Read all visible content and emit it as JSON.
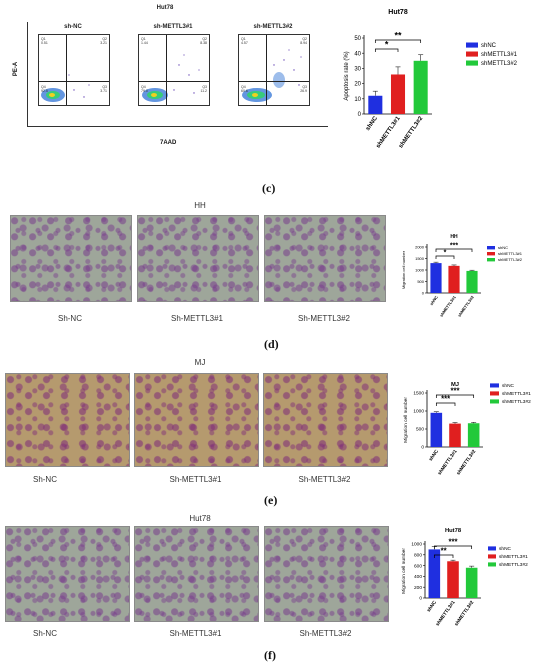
{
  "panel_letters": {
    "c": "(c)",
    "d": "(d)",
    "e": "(e)",
    "f": "(f)"
  },
  "flow": {
    "cell_line": "Hut78",
    "y_axis": "PE-A",
    "x_axis": "7AAD",
    "plots": [
      {
        "title": "sh-NC",
        "q1": "Q1",
        "q2": "Q2",
        "q3": "Q3",
        "q4": "Q4",
        "q1v": "0.51",
        "q2v": "3.21",
        "q3v": "3.71",
        "q4v": "92.5"
      },
      {
        "title": "sh-METTL3#1",
        "q1": "Q1",
        "q2": "Q2",
        "q3": "Q3",
        "q4": "Q4",
        "q1v": "1.44",
        "q2v": "8.38",
        "q3v": "11.2",
        "q4v": "79.0"
      },
      {
        "title": "sh-METTL3#2",
        "q1": "Q1",
        "q2": "Q2",
        "q3": "Q3",
        "q4": "Q4",
        "q1v": "4.57",
        "q2v": "8.94",
        "q3v": "26.9",
        "q4v": "60.6"
      }
    ]
  },
  "micrographs": {
    "hh": {
      "title": "HH",
      "labels": [
        "Sh-NC",
        "Sh-METTL3#1",
        "Sh-METTL3#2"
      ]
    },
    "mj": {
      "title": "MJ",
      "labels": [
        "Sh-NC",
        "Sh-METTL3#1",
        "Sh-METTL3#2"
      ]
    },
    "hut78": {
      "title": "Hut78",
      "labels": [
        "Sh-NC",
        "Sh-METTL3#1",
        "Sh-METTL3#2"
      ]
    }
  },
  "colors": {
    "shNC": "#1f2fe0",
    "shMETTL3_1": "#e01f1f",
    "shMETTL3_2": "#22c93a"
  },
  "chart_data": [
    {
      "type": "bar",
      "title": "Hut78",
      "ylabel": "Apoptosis rate (%)",
      "xlabel": "",
      "categories": [
        "shNC",
        "shMETTL3#1",
        "shMETTL3#2"
      ],
      "values": [
        12,
        26,
        35
      ],
      "errors": [
        3,
        5,
        4
      ],
      "ylim": [
        0,
        50
      ],
      "yticks": [
        "0",
        "10",
        "20",
        "30",
        "40",
        "50"
      ],
      "legend": [
        "shNC",
        "shMETTL3#1",
        "shMETTL3#2"
      ],
      "legend_position": "right",
      "significance": [
        {
          "from": 0,
          "to": 1,
          "label": "*"
        },
        {
          "from": 0,
          "to": 2,
          "label": "**"
        }
      ]
    },
    {
      "type": "bar",
      "title": "HH",
      "ylabel": "Migration cell number",
      "xlabel": "",
      "categories": [
        "shNC",
        "shMETTL3#1",
        "shMETTL3#2"
      ],
      "values": [
        1300,
        1180,
        960
      ],
      "errors": [
        40,
        40,
        30
      ],
      "ylim": [
        0,
        2000
      ],
      "yticks": [
        "0",
        "500",
        "1000",
        "1500",
        "2000"
      ],
      "legend": [
        "shNC",
        "shMETTL3#1",
        "shMETTL3#2"
      ],
      "legend_position": "right",
      "significance": [
        {
          "from": 0,
          "to": 1,
          "label": "*"
        },
        {
          "from": 0,
          "to": 2,
          "label": "***"
        }
      ]
    },
    {
      "type": "bar",
      "title": "MJ",
      "ylabel": "Migration cell number",
      "xlabel": "",
      "categories": [
        "shNC",
        "shMETTL3#1",
        "shMETTL3#2"
      ],
      "values": [
        950,
        650,
        660
      ],
      "errors": [
        30,
        30,
        25
      ],
      "ylim": [
        0,
        1500
      ],
      "yticks": [
        "0",
        "500",
        "1000",
        "1500"
      ],
      "legend": [
        "shNC",
        "shMETTL3#1",
        "shMETTL3#2"
      ],
      "legend_position": "right",
      "significance": [
        {
          "from": 0,
          "to": 1,
          "label": "***"
        },
        {
          "from": 0,
          "to": 2,
          "label": "***"
        }
      ]
    },
    {
      "type": "bar",
      "title": "Hut78",
      "ylabel": "Migration cell number",
      "xlabel": "",
      "categories": [
        "shNC",
        "shMETTL3#1",
        "shMETTL3#2"
      ],
      "values": [
        900,
        680,
        560
      ],
      "errors": [
        50,
        20,
        30
      ],
      "ylim": [
        0,
        1000
      ],
      "yticks": [
        "0",
        "200",
        "400",
        "600",
        "800",
        "1000"
      ],
      "legend": [
        "shNC",
        "shMETTL3#1",
        "shMETTL3#2"
      ],
      "legend_position": "right",
      "significance": [
        {
          "from": 0,
          "to": 1,
          "label": "**"
        },
        {
          "from": 0,
          "to": 2,
          "label": "***"
        }
      ]
    }
  ]
}
